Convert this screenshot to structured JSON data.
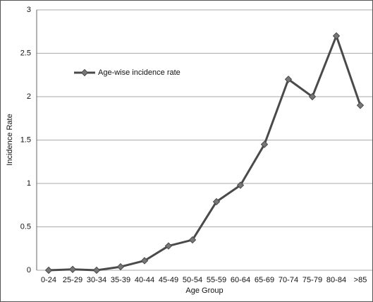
{
  "chart_data": {
    "type": "line",
    "x_label": "Age Group",
    "y_label": "Incidence Rate",
    "categories": [
      "0-24",
      "25-29",
      "30-34",
      "35-39",
      "40-44",
      "45-49",
      "50-54",
      "55-59",
      "60-64",
      "65-69",
      "70-74",
      "75-79",
      "80-84",
      ">85"
    ],
    "series": [
      {
        "name": "Age-wise incidence rate",
        "color": "#4a4a4a",
        "values": [
          0,
          0.01,
          0,
          0.04,
          0.11,
          0.28,
          0.35,
          0.79,
          0.98,
          1.45,
          2.2,
          2.0,
          2.7,
          1.9
        ]
      }
    ],
    "ylim": [
      0,
      3
    ],
    "yticks": [
      0,
      0.5,
      1,
      1.5,
      2,
      2.5,
      3
    ],
    "grid": true
  }
}
